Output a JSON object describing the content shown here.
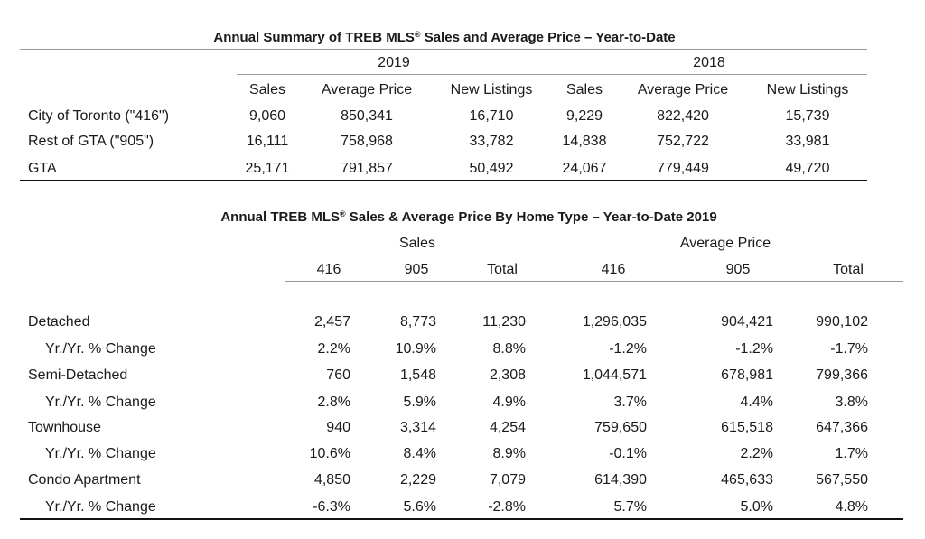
{
  "summary": {
    "title_prefix": "Annual Summary of TREB MLS",
    "title_suffix": " Sales and Average Price – Year-to-Date",
    "reg_mark": "®",
    "years": [
      "2019",
      "2018"
    ],
    "columns": [
      "Sales",
      "Average Price",
      "New Listings",
      "Sales",
      "Average Price",
      "New Listings"
    ],
    "rows": [
      {
        "label": "City of Toronto (\"416\")",
        "values": [
          "9,060",
          "850,341",
          "16,710",
          "9,229",
          "822,420",
          "15,739"
        ]
      },
      {
        "label": "Rest of GTA (\"905\")",
        "values": [
          "16,111",
          "758,968",
          "33,782",
          "14,838",
          "752,722",
          "33,981"
        ]
      },
      {
        "label": "GTA",
        "values": [
          "25,171",
          "791,857",
          "50,492",
          "24,067",
          "779,449",
          "49,720"
        ]
      }
    ]
  },
  "hometype": {
    "title_prefix": "Annual TREB MLS",
    "title_suffix": " Sales & Average Price  By Home Type – Year-to-Date 2019",
    "reg_mark": "®",
    "groups": [
      "Sales",
      "Average Price"
    ],
    "columns": [
      "416",
      "905",
      "Total",
      "416",
      "905",
      "Total"
    ],
    "rows": [
      {
        "label": "Detached",
        "values": [
          "2,457",
          "8,773",
          "11,230",
          "1,296,035",
          "904,421",
          "990,102"
        ]
      },
      {
        "label": "Yr./Yr. % Change",
        "values": [
          "2.2%",
          "10.9%",
          "8.8%",
          "-1.2%",
          "-1.2%",
          "-1.7%"
        ]
      },
      {
        "label": "Semi-Detached",
        "values": [
          "760",
          "1,548",
          "2,308",
          "1,044,571",
          "678,981",
          "799,366"
        ]
      },
      {
        "label": "Yr./Yr. % Change",
        "values": [
          "2.8%",
          "5.9%",
          "4.9%",
          "3.7%",
          "4.4%",
          "3.8%"
        ]
      },
      {
        "label": "Townhouse",
        "values": [
          "940",
          "3,314",
          "4,254",
          "759,650",
          "615,518",
          "647,366"
        ]
      },
      {
        "label": "Yr./Yr. % Change",
        "values": [
          "10.6%",
          "8.4%",
          "8.9%",
          "-0.1%",
          "2.2%",
          "1.7%"
        ]
      },
      {
        "label": "Condo Apartment",
        "values": [
          "4,850",
          "2,229",
          "7,079",
          "614,390",
          "465,633",
          "567,550"
        ]
      },
      {
        "label": "Yr./Yr. % Change",
        "values": [
          "-6.3%",
          "5.6%",
          "-2.8%",
          "5.7%",
          "5.0%",
          "4.8%"
        ]
      }
    ]
  }
}
